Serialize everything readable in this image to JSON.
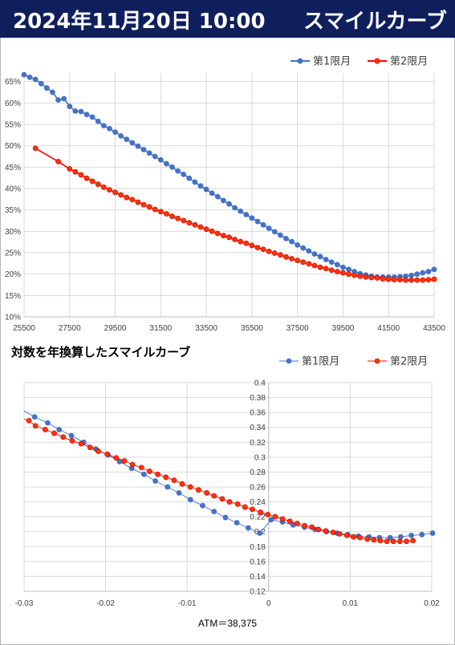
{
  "header": {
    "date_time": "2024年11月20日 10:00",
    "title": "スマイルカーブ"
  },
  "colors": {
    "header_bg": "#0f1f5c",
    "series1": "#4472c4",
    "series2": "#ff0000",
    "series2_marker": "#ff3300"
  },
  "chart_data": [
    {
      "type": "line",
      "title": "",
      "legend_position": "top-right",
      "grid": true,
      "xlim": [
        25500,
        43500
      ],
      "x_ticks": [
        "25500",
        "27500",
        "29500",
        "31500",
        "33500",
        "35500",
        "37500",
        "39500",
        "41500",
        "43500"
      ],
      "ylim": [
        0.1,
        0.67
      ],
      "y_ticks": [
        "10%",
        "15%",
        "20%",
        "25%",
        "30%",
        "35%",
        "40%",
        "45%",
        "50%",
        "55%",
        "60%",
        "65%"
      ],
      "series": [
        {
          "name": "第1限月",
          "x": [
            25500,
            25750,
            26000,
            26250,
            26500,
            26750,
            27000,
            27250,
            27500,
            27750,
            28000,
            28250,
            28500,
            28750,
            29000,
            29250,
            29500,
            29750,
            30000,
            30250,
            30500,
            30750,
            31000,
            31250,
            31500,
            31750,
            32000,
            32250,
            32500,
            32750,
            33000,
            33250,
            33500,
            33750,
            34000,
            34250,
            34500,
            34750,
            35000,
            35250,
            35500,
            35750,
            36000,
            36250,
            36500,
            36750,
            37000,
            37250,
            37500,
            37750,
            38000,
            38250,
            38500,
            38750,
            39000,
            39250,
            39500,
            39750,
            40000,
            40250,
            40500,
            40750,
            41000,
            41250,
            41500,
            41750,
            42000,
            42250,
            42500,
            42750,
            43000,
            43250,
            43500
          ],
          "values": [
            0.666,
            0.66,
            0.655,
            0.645,
            0.635,
            0.625,
            0.607,
            0.61,
            0.592,
            0.581,
            0.58,
            0.573,
            0.567,
            0.557,
            0.547,
            0.54,
            0.532,
            0.523,
            0.515,
            0.507,
            0.499,
            0.491,
            0.483,
            0.475,
            0.467,
            0.458,
            0.45,
            0.441,
            0.433,
            0.424,
            0.415,
            0.406,
            0.398,
            0.389,
            0.381,
            0.372,
            0.364,
            0.355,
            0.347,
            0.339,
            0.331,
            0.323,
            0.315,
            0.307,
            0.299,
            0.291,
            0.283,
            0.276,
            0.268,
            0.261,
            0.254,
            0.247,
            0.241,
            0.234,
            0.228,
            0.222,
            0.216,
            0.211,
            0.206,
            0.201,
            0.198,
            0.195,
            0.193,
            0.193,
            0.193,
            0.193,
            0.194,
            0.195,
            0.197,
            0.2,
            0.203,
            0.206,
            0.211
          ]
        },
        {
          "name": "第2限月",
          "x": [
            26000,
            27000,
            27500,
            27750,
            28000,
            28250,
            28500,
            28750,
            29000,
            29250,
            29500,
            29750,
            30000,
            30250,
            30500,
            30750,
            31000,
            31250,
            31500,
            31750,
            32000,
            32250,
            32500,
            32750,
            33000,
            33250,
            33500,
            33750,
            34000,
            34250,
            34500,
            34750,
            35000,
            35250,
            35500,
            35750,
            36000,
            36250,
            36500,
            36750,
            37000,
            37250,
            37500,
            37750,
            38000,
            38250,
            38500,
            38750,
            39000,
            39250,
            39500,
            39750,
            40000,
            40250,
            40500,
            40750,
            41000,
            41250,
            41500,
            41750,
            42000,
            42250,
            42500,
            42750,
            43000,
            43250,
            43500
          ],
          "values": [
            0.494,
            0.463,
            0.446,
            0.439,
            0.432,
            0.424,
            0.417,
            0.41,
            0.403,
            0.397,
            0.391,
            0.385,
            0.379,
            0.374,
            0.368,
            0.362,
            0.357,
            0.351,
            0.346,
            0.341,
            0.335,
            0.33,
            0.325,
            0.32,
            0.315,
            0.31,
            0.305,
            0.3,
            0.295,
            0.29,
            0.286,
            0.281,
            0.276,
            0.272,
            0.267,
            0.262,
            0.258,
            0.253,
            0.249,
            0.245,
            0.24,
            0.236,
            0.232,
            0.228,
            0.224,
            0.22,
            0.216,
            0.213,
            0.209,
            0.206,
            0.203,
            0.2,
            0.197,
            0.195,
            0.193,
            0.192,
            0.191,
            0.189,
            0.188,
            0.187,
            0.187,
            0.186,
            0.186,
            0.186,
            0.186,
            0.187,
            0.188
          ]
        }
      ]
    },
    {
      "type": "scatter",
      "title": "対数を年換算したスマイルカーブ",
      "legend_position": "top-right",
      "grid": true,
      "xlim": [
        -0.03,
        0.02
      ],
      "x_ticks": [
        "-0.03",
        "-0.02",
        "-0.01",
        "0",
        "0.01",
        "0.02"
      ],
      "ylim": [
        0.12,
        0.4
      ],
      "y_ticks": [
        "0.12",
        "0.14",
        "0.16",
        "0.18",
        "0.2",
        "0.22",
        "0.24",
        "0.26",
        "0.28",
        "0.3",
        "0.32",
        "0.34",
        "0.36",
        "0.38",
        "0.4"
      ],
      "x_axis_label": "ATM＝38,375",
      "series": [
        {
          "name": "第1限月",
          "x": [
            -0.0287,
            -0.0271,
            -0.0257,
            -0.0242,
            -0.0227,
            -0.0212,
            -0.0197,
            -0.0183,
            -0.0168,
            -0.0153,
            -0.0139,
            -0.0124,
            -0.011,
            -0.0096,
            -0.0081,
            -0.0067,
            -0.0053,
            -0.0039,
            -0.0025,
            -0.0011,
            0.0003,
            0.0017,
            0.003,
            0.0044,
            0.0057,
            0.0071,
            0.0084,
            0.0097,
            0.011,
            0.0123,
            0.0136,
            0.0149,
            0.0162,
            0.0175,
            0.0188,
            0.0201
          ],
          "values": [
            0.354,
            0.346,
            0.337,
            0.329,
            0.32,
            0.311,
            0.303,
            0.294,
            0.285,
            0.277,
            0.268,
            0.26,
            0.252,
            0.243,
            0.235,
            0.227,
            0.219,
            0.212,
            0.205,
            0.198,
            0.216,
            0.213,
            0.209,
            0.206,
            0.203,
            0.2,
            0.198,
            0.196,
            0.194,
            0.193,
            0.192,
            0.192,
            0.193,
            0.195,
            0.196,
            0.198
          ]
        },
        {
          "name": "第2限月",
          "x": [
            -0.0294,
            -0.0286,
            -0.0274,
            -0.0263,
            -0.0252,
            -0.0241,
            -0.023,
            -0.0219,
            -0.0209,
            -0.0198,
            -0.0187,
            -0.0177,
            -0.0167,
            -0.0156,
            -0.0146,
            -0.0136,
            -0.0126,
            -0.0116,
            -0.0106,
            -0.0096,
            -0.0086,
            -0.0076,
            -0.0067,
            -0.0057,
            -0.0048,
            -0.0038,
            -0.0029,
            -0.002,
            -0.001,
            -0.0001,
            0.0008,
            0.0017,
            0.0026,
            0.0035,
            0.0044,
            0.0053,
            0.0061,
            0.007,
            0.0079,
            0.0087,
            0.0096,
            0.0104,
            0.0112,
            0.0121,
            0.0129,
            0.0137,
            0.0145,
            0.0153,
            0.0161,
            0.0169,
            0.0177
          ],
          "values": [
            0.349,
            0.342,
            0.337,
            0.332,
            0.327,
            0.322,
            0.318,
            0.313,
            0.308,
            0.304,
            0.299,
            0.295,
            0.29,
            0.286,
            0.281,
            0.277,
            0.273,
            0.269,
            0.264,
            0.26,
            0.256,
            0.252,
            0.248,
            0.244,
            0.24,
            0.237,
            0.233,
            0.23,
            0.226,
            0.223,
            0.22,
            0.217,
            0.214,
            0.211,
            0.208,
            0.206,
            0.203,
            0.201,
            0.199,
            0.197,
            0.195,
            0.193,
            0.192,
            0.19,
            0.189,
            0.188,
            0.187,
            0.187,
            0.187,
            0.187,
            0.188
          ]
        }
      ]
    }
  ]
}
